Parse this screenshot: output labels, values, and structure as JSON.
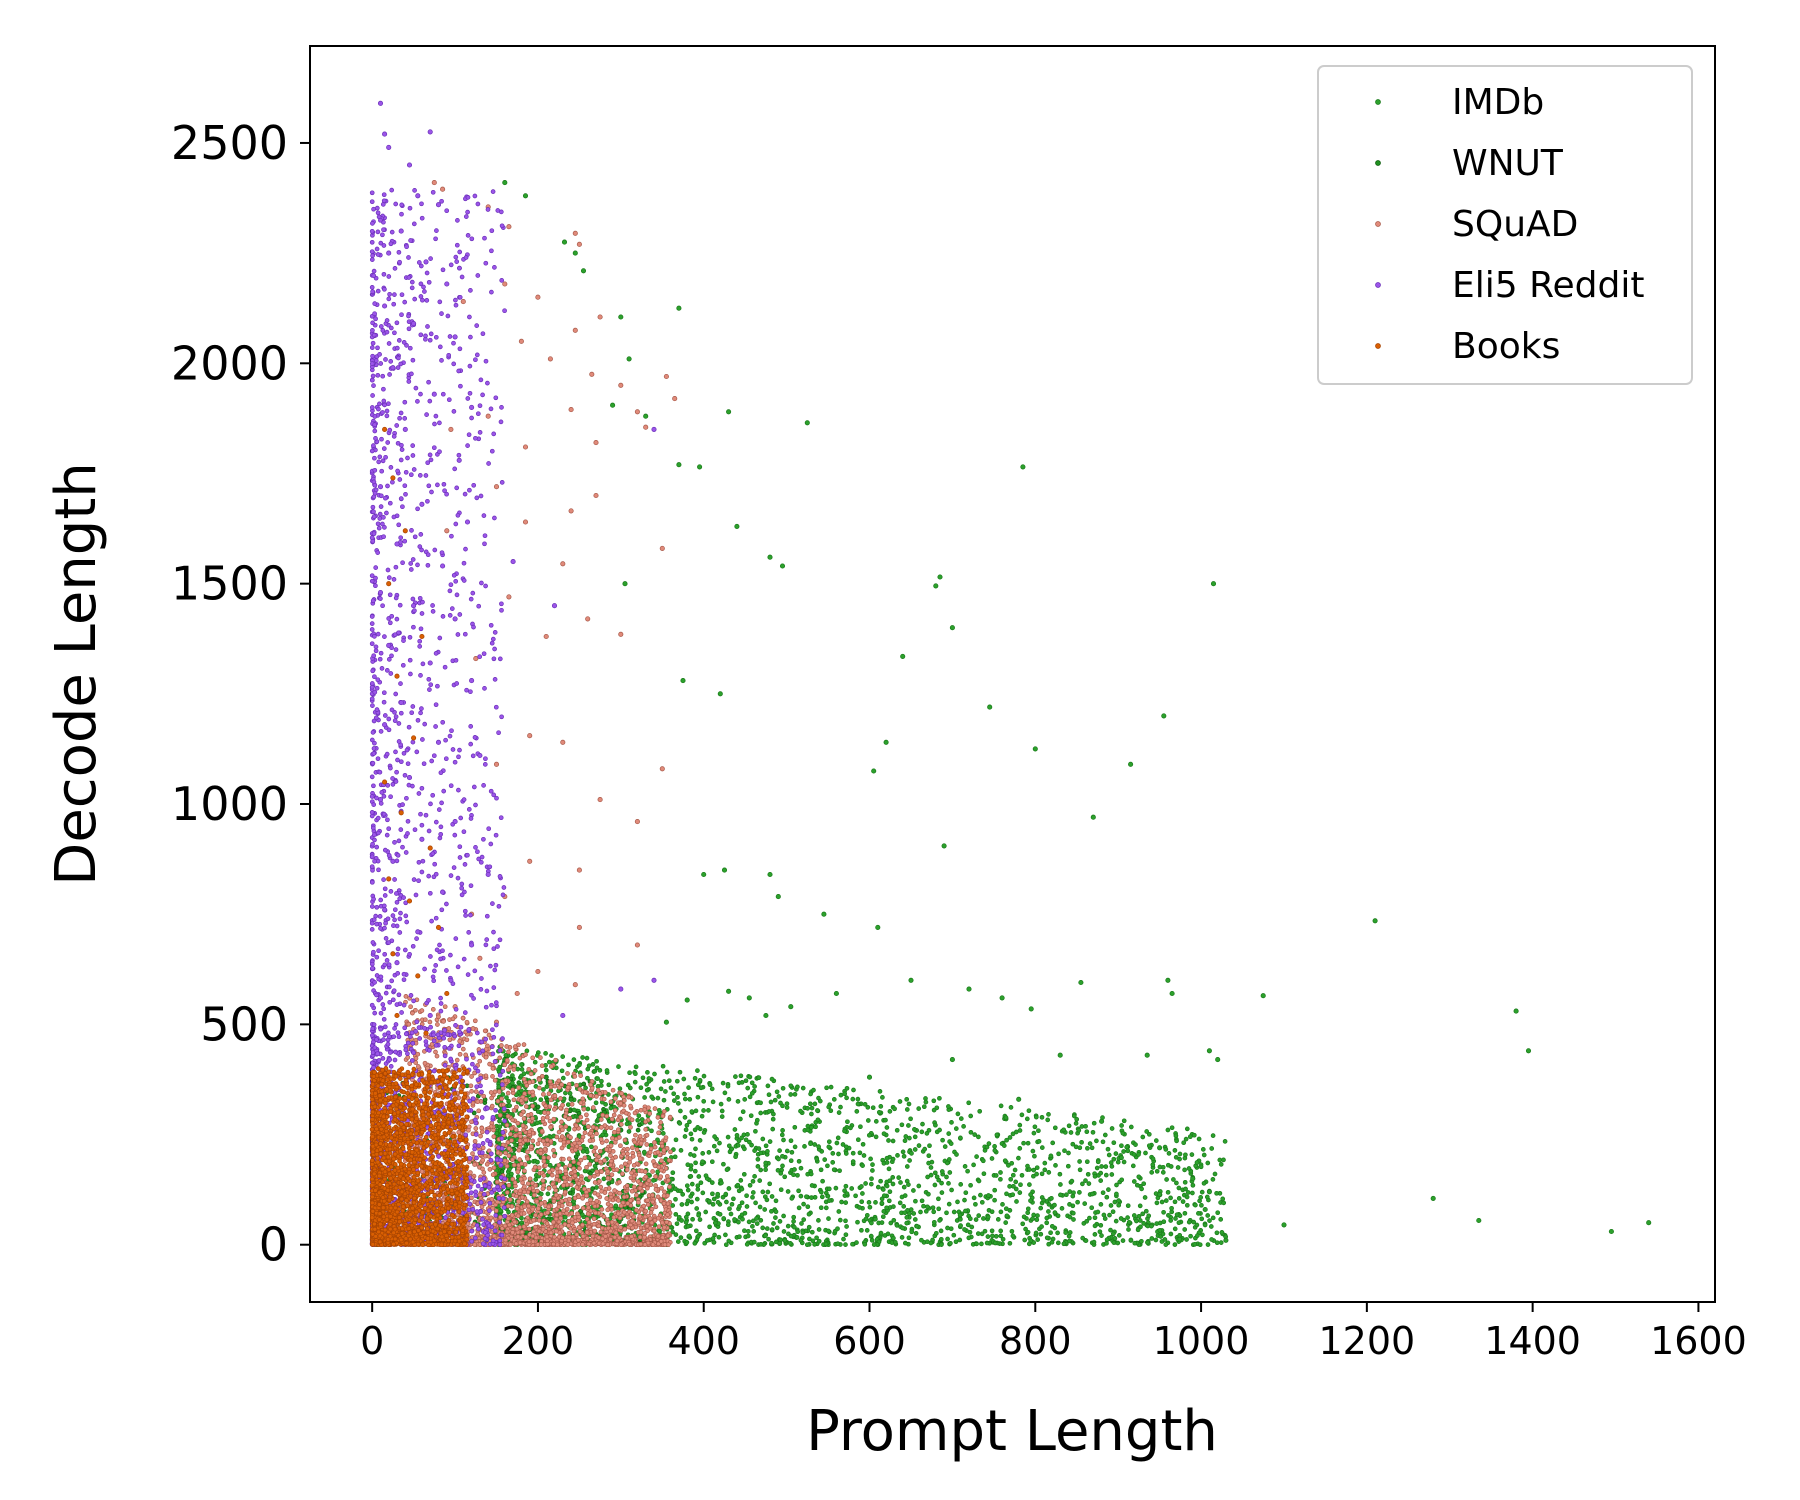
{
  "chart_data": {
    "type": "scatter",
    "title": "",
    "xlabel": "Prompt Length",
    "ylabel": "Decode Length",
    "xlim": [
      -75,
      1620
    ],
    "ylim": [
      -130,
      2720
    ],
    "xticks": [
      0,
      200,
      400,
      600,
      800,
      1000,
      1200,
      1400,
      1600
    ],
    "yticks": [
      0,
      500,
      1000,
      1500,
      2000,
      2500
    ],
    "grid": false,
    "legend_position": "top-right",
    "series": [
      {
        "name": "IMDb",
        "color": "#2ca02c",
        "edge": "#1a7a1a",
        "points": [
          [
            160,
            2410
          ],
          [
            185,
            2380
          ],
          [
            232,
            2275
          ],
          [
            245,
            2250
          ],
          [
            255,
            2210
          ],
          [
            300,
            2105
          ],
          [
            370,
            2125
          ],
          [
            310,
            2010
          ],
          [
            290,
            1905
          ],
          [
            330,
            1880
          ],
          [
            430,
            1890
          ],
          [
            525,
            1865
          ],
          [
            785,
            1765
          ],
          [
            370,
            1770
          ],
          [
            395,
            1765
          ],
          [
            440,
            1630
          ],
          [
            480,
            1560
          ],
          [
            495,
            1540
          ],
          [
            1015,
            1500
          ],
          [
            685,
            1515
          ],
          [
            680,
            1495
          ],
          [
            305,
            1500
          ],
          [
            700,
            1400
          ],
          [
            640,
            1335
          ],
          [
            745,
            1220
          ],
          [
            955,
            1200
          ],
          [
            420,
            1250
          ],
          [
            375,
            1280
          ],
          [
            620,
            1140
          ],
          [
            800,
            1125
          ],
          [
            605,
            1075
          ],
          [
            915,
            1090
          ],
          [
            870,
            970
          ],
          [
            690,
            905
          ],
          [
            480,
            840
          ],
          [
            425,
            850
          ],
          [
            400,
            840
          ],
          [
            490,
            790
          ],
          [
            545,
            750
          ],
          [
            610,
            720
          ],
          [
            1210,
            735
          ],
          [
            1075,
            565
          ],
          [
            1380,
            530
          ],
          [
            1395,
            440
          ],
          [
            960,
            600
          ],
          [
            965,
            570
          ],
          [
            855,
            595
          ],
          [
            795,
            535
          ],
          [
            830,
            430
          ],
          [
            1280,
            105
          ],
          [
            1335,
            55
          ],
          [
            1495,
            30
          ],
          [
            1540,
            50
          ],
          [
            1100,
            45
          ],
          [
            1030,
            10
          ],
          [
            1020,
            420
          ],
          [
            1010,
            440
          ],
          [
            935,
            430
          ],
          [
            720,
            580
          ],
          [
            760,
            560
          ],
          [
            650,
            600
          ],
          [
            560,
            570
          ],
          [
            505,
            540
          ],
          [
            475,
            520
          ],
          [
            455,
            560
          ],
          [
            430,
            575
          ],
          [
            380,
            555
          ],
          [
            355,
            505
          ],
          [
            600,
            380
          ],
          [
            700,
            420
          ],
          [
            780,
            330
          ],
          [
            880,
            280
          ],
          [
            950,
            220
          ],
          [
            990,
            150
          ],
          [
            1005,
            80
          ],
          [
            1010,
            120
          ]
        ],
        "cluster": {
          "x_range": [
            150,
            1025
          ],
          "y_range": [
            0,
            450
          ],
          "density": "high near x=250-500, y<250"
        }
      },
      {
        "name": "WNUT",
        "color": "#1f8f1f",
        "edge": "#0d5c0d",
        "points": [
          [
            160,
            420
          ],
          [
            210,
            380
          ],
          [
            240,
            330
          ],
          [
            280,
            300
          ],
          [
            300,
            260
          ],
          [
            320,
            230
          ]
        ],
        "cluster": {
          "x_range": [
            0,
            350
          ],
          "y_range": [
            0,
            400
          ],
          "density": "medium"
        }
      },
      {
        "name": "SQuAD",
        "color": "#e08a7a",
        "edge": "#a85a4a",
        "points": [
          [
            75,
            2410
          ],
          [
            85,
            2395
          ],
          [
            140,
            2355
          ],
          [
            165,
            2310
          ],
          [
            245,
            2295
          ],
          [
            250,
            2270
          ],
          [
            110,
            2140
          ],
          [
            160,
            2180
          ],
          [
            200,
            2150
          ],
          [
            275,
            2105
          ],
          [
            245,
            2075
          ],
          [
            180,
            2050
          ],
          [
            215,
            2010
          ],
          [
            265,
            1975
          ],
          [
            300,
            1950
          ],
          [
            355,
            1970
          ],
          [
            365,
            1920
          ],
          [
            320,
            1890
          ],
          [
            240,
            1895
          ],
          [
            140,
            1880
          ],
          [
            95,
            1850
          ],
          [
            185,
            1810
          ],
          [
            330,
            1855
          ],
          [
            270,
            1820
          ],
          [
            150,
            1720
          ],
          [
            270,
            1700
          ],
          [
            240,
            1665
          ],
          [
            185,
            1640
          ],
          [
            90,
            1620
          ],
          [
            350,
            1580
          ],
          [
            230,
            1545
          ],
          [
            165,
            1470
          ],
          [
            260,
            1420
          ],
          [
            300,
            1385
          ],
          [
            210,
            1380
          ],
          [
            125,
            1330
          ],
          [
            190,
            1155
          ],
          [
            230,
            1140
          ],
          [
            150,
            1090
          ],
          [
            350,
            1080
          ],
          [
            275,
            1010
          ],
          [
            320,
            960
          ],
          [
            250,
            850
          ],
          [
            190,
            870
          ],
          [
            160,
            790
          ],
          [
            120,
            750
          ],
          [
            250,
            720
          ],
          [
            320,
            680
          ],
          [
            130,
            650
          ],
          [
            200,
            620
          ],
          [
            245,
            590
          ],
          [
            175,
            570
          ],
          [
            100,
            540
          ],
          [
            150,
            505
          ]
        ],
        "cluster": {
          "x_range": [
            0,
            350
          ],
          "y_range": [
            0,
            700
          ],
          "density": "very high near x=100-250, y<350"
        }
      },
      {
        "name": "Eli5 Reddit",
        "color": "#9b55e8",
        "edge": "#6a2fb8",
        "points": [
          [
            10,
            2590
          ],
          [
            15,
            2520
          ],
          [
            20,
            2490
          ],
          [
            70,
            2525
          ],
          [
            45,
            2450
          ],
          [
            55,
            2380
          ],
          [
            80,
            2360
          ],
          [
            35,
            2300
          ],
          [
            20,
            2250
          ],
          [
            65,
            2230
          ],
          [
            90,
            2180
          ],
          [
            15,
            2130
          ],
          [
            50,
            2090
          ],
          [
            100,
            2060
          ],
          [
            25,
            1990
          ],
          [
            75,
            1930
          ],
          [
            120,
            1900
          ],
          [
            40,
            1850
          ],
          [
            105,
            1780
          ],
          [
            10,
            1720
          ],
          [
            60,
            1680
          ],
          [
            115,
            1640
          ],
          [
            30,
            1590
          ],
          [
            85,
            1540
          ],
          [
            10,
            1480
          ],
          [
            50,
            1450
          ],
          [
            100,
            1420
          ],
          [
            20,
            1360
          ],
          [
            70,
            1320
          ],
          [
            120,
            1280
          ],
          [
            35,
            1230
          ],
          [
            15,
            1180
          ],
          [
            80,
            1140
          ],
          [
            130,
            1110
          ],
          [
            45,
            1060
          ],
          [
            10,
            1010
          ],
          [
            100,
            960
          ],
          [
            60,
            920
          ],
          [
            25,
            870
          ],
          [
            140,
            840
          ],
          [
            85,
            800
          ],
          [
            15,
            760
          ],
          [
            55,
            710
          ],
          [
            120,
            680
          ],
          [
            30,
            640
          ],
          [
            95,
            600
          ],
          [
            10,
            560
          ],
          [
            70,
            520
          ],
          [
            340,
            1850
          ],
          [
            170,
            1550
          ],
          [
            220,
            1450
          ],
          [
            340,
            600
          ],
          [
            300,
            580
          ],
          [
            230,
            520
          ]
        ],
        "cluster": {
          "x_range": [
            0,
            150
          ],
          "y_range": [
            0,
            2600
          ],
          "density": "very high near x<40"
        }
      },
      {
        "name": "Books",
        "color": "#d95f02",
        "edge": "#a84502",
        "points": [
          [
            15,
            1850
          ],
          [
            25,
            1740
          ],
          [
            40,
            1620
          ],
          [
            20,
            1500
          ],
          [
            60,
            1380
          ],
          [
            30,
            1290
          ],
          [
            50,
            1150
          ],
          [
            15,
            1050
          ],
          [
            35,
            980
          ],
          [
            70,
            900
          ],
          [
            20,
            830
          ],
          [
            45,
            780
          ],
          [
            80,
            720
          ],
          [
            25,
            660
          ],
          [
            55,
            610
          ],
          [
            90,
            570
          ],
          [
            30,
            520
          ],
          [
            65,
            480
          ]
        ],
        "cluster": {
          "x_range": [
            0,
            110
          ],
          "y_range": [
            0,
            400
          ],
          "density": "very high, solid fill"
        }
      }
    ]
  }
}
